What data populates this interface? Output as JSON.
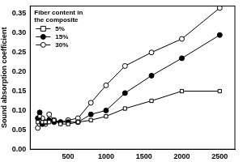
{
  "chart_data": {
    "type": "line",
    "y_label": "Sound absorption coefficient",
    "legend_title": "Fiber content in the composite",
    "legend": "upper left",
    "grid": false,
    "x": [
      100,
      125,
      160,
      200,
      250,
      315,
      400,
      500,
      630,
      800,
      1000,
      1250,
      1600,
      2000,
      2500
    ],
    "series": [
      {
        "name": "5%",
        "color": "#000000",
        "marker": "square-open",
        "line_style": "solid",
        "values": [
          0.07,
          0.085,
          0.07,
          0.07,
          0.07,
          0.075,
          0.065,
          0.065,
          0.07,
          0.075,
          0.085,
          0.105,
          0.125,
          0.15,
          0.15
        ]
      },
      {
        "name": "15%",
        "color": "#000000",
        "marker": "circle-filled",
        "line_style": "solid",
        "values": [
          0.08,
          0.095,
          0.065,
          0.07,
          0.075,
          0.07,
          0.07,
          0.07,
          0.07,
          0.09,
          0.1,
          0.145,
          0.19,
          0.235,
          0.295
        ]
      },
      {
        "name": "30%",
        "color": "#000000",
        "marker": "circle-open",
        "line_style": "solid",
        "values": [
          0.055,
          0.065,
          0.08,
          0.065,
          0.09,
          0.075,
          0.07,
          0.075,
          0.08,
          0.12,
          0.165,
          0.215,
          0.25,
          0.285,
          0.365
        ]
      }
    ],
    "xlim": [
      0,
      2700
    ],
    "xticks": [
      500,
      1000,
      1500,
      2000,
      2500
    ],
    "ylim": [
      0,
      0.37
    ],
    "yticks": [
      {
        "value": 0,
        "label": "0.00"
      },
      {
        "value": 0.05,
        "label": "0.05"
      },
      {
        "value": 0.1,
        "label": "0.10"
      },
      {
        "value": 0.15,
        "label": "0.15"
      },
      {
        "value": 0.2,
        "label": "0.20"
      },
      {
        "value": 0.25,
        "label": "0.25"
      },
      {
        "value": 0.3,
        "label": "0.30"
      },
      {
        "value": 0.35,
        "label": "0.35"
      }
    ]
  }
}
